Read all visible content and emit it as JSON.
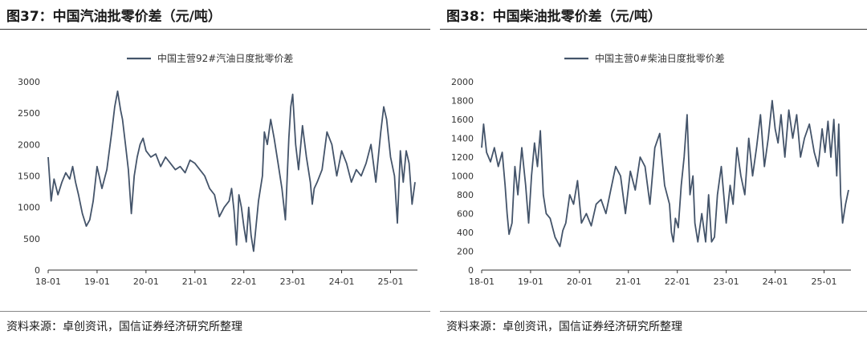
{
  "colors": {
    "series": "#44546a",
    "axis": "#333333"
  },
  "chart_data": [
    {
      "type": "line",
      "figure_title": "图37：中国汽油批零价差（元/吨）",
      "source": "资料来源：卓创资讯，国信证券经济研究所整理",
      "series_name": "中国主营92#汽油日度批零价差",
      "legend_position": "top-center",
      "grid": false,
      "ylim": [
        0,
        3000
      ],
      "yticks": [
        "0",
        "500",
        "1000",
        "1500",
        "2000",
        "2500",
        "3000"
      ],
      "xticks": [
        "18-01",
        "19-01",
        "20-01",
        "21-01",
        "22-01",
        "23-01",
        "24-01",
        "25-01"
      ],
      "x": [
        2018.0,
        2018.06,
        2018.12,
        2018.2,
        2018.28,
        2018.36,
        2018.44,
        2018.5,
        2018.56,
        2018.62,
        2018.7,
        2018.78,
        2018.85,
        2018.92,
        2019.0,
        2019.1,
        2019.2,
        2019.3,
        2019.36,
        2019.42,
        2019.48,
        2019.52,
        2019.58,
        2019.64,
        2019.7,
        2019.76,
        2019.82,
        2019.88,
        2019.94,
        2020.0,
        2020.1,
        2020.2,
        2020.3,
        2020.4,
        2020.5,
        2020.6,
        2020.7,
        2020.8,
        2020.9,
        2021.0,
        2021.1,
        2021.2,
        2021.3,
        2021.4,
        2021.5,
        2021.6,
        2021.7,
        2021.75,
        2021.8,
        2021.85,
        2021.9,
        2021.95,
        2022.0,
        2022.05,
        2022.1,
        2022.15,
        2022.2,
        2022.3,
        2022.38,
        2022.42,
        2022.48,
        2022.55,
        2022.62,
        2022.7,
        2022.78,
        2022.85,
        2022.92,
        2022.96,
        2023.0,
        2023.06,
        2023.12,
        2023.2,
        2023.28,
        2023.36,
        2023.4,
        2023.44,
        2023.5,
        2023.6,
        2023.7,
        2023.8,
        2023.9,
        2024.0,
        2024.1,
        2024.2,
        2024.3,
        2024.4,
        2024.5,
        2024.6,
        2024.7,
        2024.8,
        2024.86,
        2024.92,
        2025.0,
        2025.08,
        2025.14,
        2025.2,
        2025.26,
        2025.32,
        2025.38,
        2025.44,
        2025.5
      ],
      "y": [
        1800,
        1100,
        1450,
        1200,
        1400,
        1550,
        1450,
        1650,
        1400,
        1200,
        900,
        700,
        800,
        1100,
        1650,
        1300,
        1600,
        2200,
        2600,
        2850,
        2550,
        2400,
        2000,
        1600,
        900,
        1500,
        1800,
        2000,
        2100,
        1900,
        1800,
        1850,
        1650,
        1800,
        1700,
        1600,
        1650,
        1550,
        1750,
        1700,
        1600,
        1500,
        1300,
        1200,
        850,
        1000,
        1100,
        1300,
        950,
        400,
        1200,
        1000,
        700,
        450,
        1000,
        550,
        300,
        1100,
        1500,
        2200,
        2000,
        2400,
        2100,
        1700,
        1300,
        800,
        2100,
        2600,
        2800,
        2000,
        1600,
        2300,
        1800,
        1400,
        1050,
        1300,
        1400,
        1600,
        2200,
        2000,
        1500,
        1900,
        1700,
        1400,
        1600,
        1500,
        1700,
        2000,
        1400,
        2200,
        2600,
        2400,
        1800,
        1500,
        750,
        1900,
        1400,
        1900,
        1700,
        1050,
        1400
      ]
    },
    {
      "type": "line",
      "figure_title": "图38：中国柴油批零价差（元/吨）",
      "source": "资料来源：卓创资讯，国信证券经济研究所整理",
      "series_name": "中国主营0#柴油日度批零价差",
      "legend_position": "top-center",
      "grid": false,
      "ylim": [
        0,
        2000
      ],
      "yticks": [
        "0",
        "200",
        "400",
        "600",
        "800",
        "1000",
        "1200",
        "1400",
        "1600",
        "1800",
        "2000"
      ],
      "xticks": [
        "18-01",
        "19-01",
        "20-01",
        "21-01",
        "22-01",
        "23-01",
        "24-01",
        "25-01"
      ],
      "x": [
        2018.0,
        2018.04,
        2018.1,
        2018.18,
        2018.26,
        2018.34,
        2018.42,
        2018.48,
        2018.52,
        2018.56,
        2018.62,
        2018.68,
        2018.74,
        2018.82,
        2018.9,
        2018.96,
        2019.02,
        2019.08,
        2019.14,
        2019.2,
        2019.26,
        2019.32,
        2019.4,
        2019.5,
        2019.6,
        2019.66,
        2019.72,
        2019.8,
        2019.88,
        2019.96,
        2020.04,
        2020.14,
        2020.24,
        2020.34,
        2020.44,
        2020.54,
        2020.64,
        2020.74,
        2020.84,
        2020.94,
        2021.04,
        2021.14,
        2021.24,
        2021.34,
        2021.44,
        2021.54,
        2021.64,
        2021.74,
        2021.84,
        2021.88,
        2021.92,
        2021.96,
        2022.02,
        2022.08,
        2022.14,
        2022.2,
        2022.26,
        2022.32,
        2022.36,
        2022.42,
        2022.5,
        2022.58,
        2022.64,
        2022.7,
        2022.76,
        2022.82,
        2022.9,
        2023.0,
        2023.08,
        2023.14,
        2023.22,
        2023.3,
        2023.38,
        2023.46,
        2023.54,
        2023.62,
        2023.7,
        2023.78,
        2023.86,
        2023.94,
        2024.0,
        2024.06,
        2024.12,
        2024.2,
        2024.28,
        2024.36,
        2024.44,
        2024.52,
        2024.6,
        2024.7,
        2024.8,
        2024.88,
        2024.96,
        2025.02,
        2025.08,
        2025.14,
        2025.2,
        2025.26,
        2025.3,
        2025.34,
        2025.38,
        2025.44,
        2025.5
      ],
      "y": [
        1300,
        1550,
        1250,
        1150,
        1300,
        1100,
        1250,
        900,
        600,
        380,
        500,
        1100,
        800,
        1300,
        900,
        500,
        1000,
        1350,
        1100,
        1480,
        800,
        600,
        550,
        350,
        250,
        420,
        500,
        800,
        700,
        950,
        500,
        600,
        470,
        700,
        750,
        600,
        850,
        1100,
        1000,
        600,
        1050,
        850,
        1200,
        1100,
        700,
        1300,
        1450,
        900,
        700,
        400,
        300,
        550,
        450,
        900,
        1200,
        1650,
        800,
        1000,
        500,
        300,
        600,
        300,
        800,
        300,
        350,
        800,
        1100,
        500,
        900,
        700,
        1300,
        1000,
        800,
        1400,
        1000,
        1300,
        1650,
        1100,
        1400,
        1800,
        1500,
        1350,
        1650,
        1200,
        1700,
        1400,
        1650,
        1200,
        1400,
        1550,
        1250,
        1100,
        1500,
        1250,
        1580,
        1200,
        1600,
        1000,
        1550,
        800,
        500,
        700,
        850
      ]
    }
  ]
}
